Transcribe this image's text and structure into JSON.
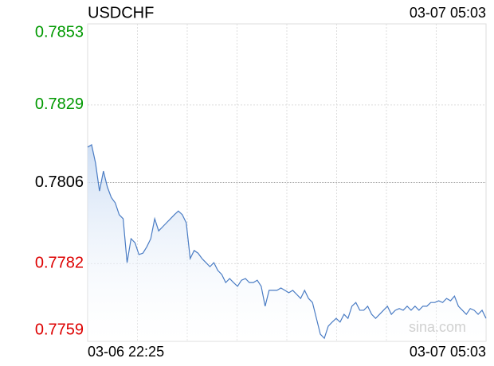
{
  "chart_data": {
    "type": "line",
    "title": "USDCHF",
    "timestamp": "03-07 05:03",
    "watermark": "sina.com",
    "x_labels": [
      "03-06 22:25",
      "03-07 05:03"
    ],
    "ref_value": 0.7806,
    "color": "#4a7cc4",
    "up_color": "#009900",
    "down_color": "#dd0000",
    "ref_color": "#000000",
    "ylim": [
      0.7759,
      0.7853
    ],
    "yticks": [
      0.7853,
      0.7829,
      0.7806,
      0.7782,
      0.7759
    ],
    "grid": true,
    "x_divisions": 8,
    "values": [
      0.78165,
      0.78172,
      0.78118,
      0.78035,
      0.78094,
      0.78047,
      0.78016,
      0.78,
      0.77965,
      0.77953,
      0.77823,
      0.77894,
      0.77882,
      0.77847,
      0.77851,
      0.7787,
      0.77894,
      0.77953,
      0.77917,
      0.77929,
      0.77941,
      0.77953,
      0.77965,
      0.77976,
      0.77965,
      0.77941,
      0.77835,
      0.77859,
      0.77851,
      0.77835,
      0.77823,
      0.77811,
      0.77823,
      0.778,
      0.77788,
      0.77764,
      0.77776,
      0.77764,
      0.77753,
      0.77771,
      0.77776,
      0.77764,
      0.77764,
      0.77771,
      0.77753,
      0.77694,
      0.77741,
      0.77741,
      0.77741,
      0.77748,
      0.77741,
      0.77734,
      0.77741,
      0.77729,
      0.77717,
      0.77741,
      0.77717,
      0.77705,
      0.77658,
      0.77611,
      0.77599,
      0.77635,
      0.77647,
      0.77658,
      0.77647,
      0.7767,
      0.77658,
      0.77694,
      0.77705,
      0.77682,
      0.77682,
      0.77694,
      0.7767,
      0.77658,
      0.7767,
      0.77682,
      0.77694,
      0.7767,
      0.77682,
      0.77687,
      0.77682,
      0.77694,
      0.77682,
      0.77694,
      0.77682,
      0.77694,
      0.77694,
      0.77705,
      0.77705,
      0.7771,
      0.77705,
      0.77717,
      0.7771,
      0.77724,
      0.77694,
      0.77682,
      0.7767,
      0.77687,
      0.77682,
      0.7767,
      0.77682,
      0.77658
    ]
  }
}
